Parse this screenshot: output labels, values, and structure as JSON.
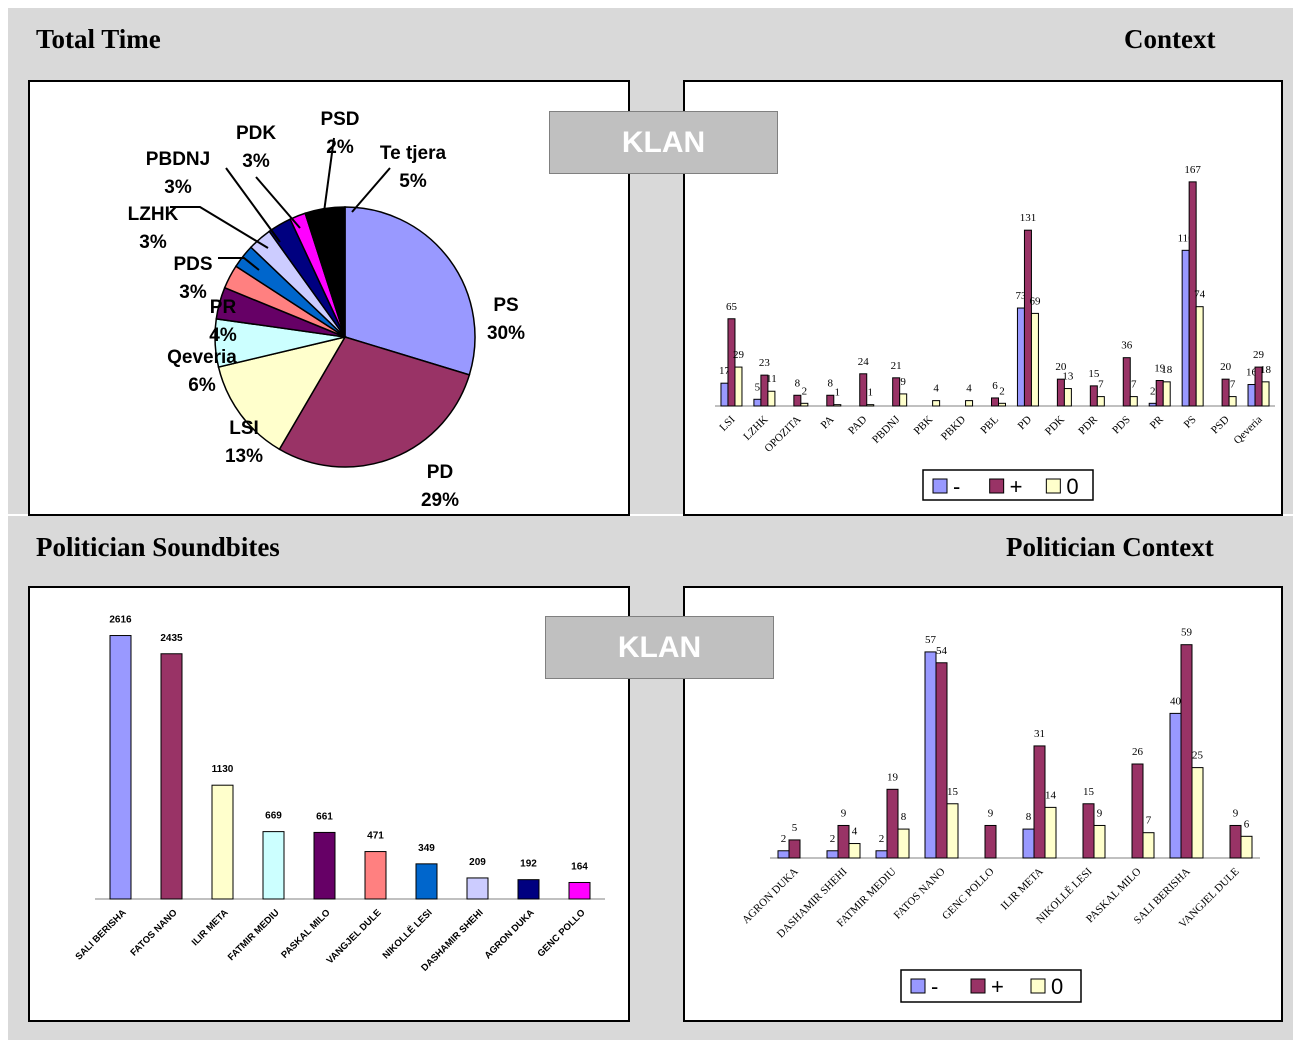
{
  "headings": {
    "total_time": "Total Time",
    "context": "Context",
    "politician_soundbites": "Politician Soundbites",
    "politician_context": "Politician Context"
  },
  "badges": {
    "klan_top": "KLAN",
    "klan_bottom": "KLAN"
  },
  "colors": {
    "panel_bg": "#d9d9d9",
    "minus": "#9999ff",
    "plus": "#993366",
    "zero": "#ffffcc"
  },
  "chart_data": [
    {
      "type": "pie",
      "title": "Total Time",
      "slices": [
        {
          "label": "PS",
          "pct": "30%",
          "value": 30,
          "color": "#9999ff"
        },
        {
          "label": "PD",
          "pct": "29%",
          "value": 29,
          "color": "#993366"
        },
        {
          "label": "LSI",
          "pct": "13%",
          "value": 13,
          "color": "#ffffcc"
        },
        {
          "label": "Qeveria",
          "pct": "6%",
          "value": 6,
          "color": "#ccffff"
        },
        {
          "label": "PR",
          "pct": "4%",
          "value": 4,
          "color": "#660066"
        },
        {
          "label": "PDS",
          "pct": "3%",
          "value": 3,
          "color": "#ff8080"
        },
        {
          "label": "LZHK",
          "pct": "3%",
          "value": 3,
          "color": "#0066cc"
        },
        {
          "label": "PBDNJ",
          "pct": "3%",
          "value": 3,
          "color": "#ccccff"
        },
        {
          "label": "PDK",
          "pct": "3%",
          "value": 3,
          "color": "#000080"
        },
        {
          "label": "PSD",
          "pct": "2%",
          "value": 2,
          "color": "#ff00ff"
        },
        {
          "label": "Te tjera",
          "pct": "5%",
          "value": 5,
          "color": "#000000"
        }
      ]
    },
    {
      "type": "bar",
      "title": "Context",
      "categories": [
        "LSI",
        "LZHK",
        "OPOZITA",
        "PA",
        "PAD",
        "PBDNJ",
        "PBK",
        "PBKD",
        "PBL",
        "PD",
        "PDK",
        "PDR",
        "PDS",
        "PR",
        "PS",
        "PSD",
        "Qeveria"
      ],
      "series": [
        {
          "name": "-",
          "values": [
            17,
            5,
            null,
            null,
            null,
            null,
            null,
            null,
            null,
            73,
            null,
            null,
            null,
            2,
            116,
            null,
            16
          ]
        },
        {
          "name": "+",
          "values": [
            65,
            23,
            8,
            8,
            24,
            21,
            null,
            null,
            6,
            131,
            20,
            15,
            36,
            19,
            167,
            20,
            29
          ]
        },
        {
          "name": "0",
          "values": [
            29,
            11,
            2,
            1,
            1,
            9,
            4,
            4,
            2,
            69,
            13,
            7,
            7,
            18,
            74,
            7,
            18
          ]
        }
      ],
      "ylim": [
        0,
        190
      ],
      "legend": "bottom"
    },
    {
      "type": "bar",
      "title": "Politician Soundbites",
      "categories": [
        "SALI BERISHA",
        "FATOS NANO",
        "ILIR META",
        "FATMIR MEDIU",
        "PASKAL MILO",
        "VANGJEL DULE",
        "NIKOLLË LESI",
        "DASHAMIR SHEHI",
        "AGRON DUKA",
        "GENC POLLO"
      ],
      "values": [
        2616,
        2435,
        1130,
        669,
        661,
        471,
        349,
        209,
        192,
        164
      ],
      "colors": [
        "#9999ff",
        "#993366",
        "#ffffcc",
        "#ccffff",
        "#660066",
        "#ff8080",
        "#0066cc",
        "#ccccff",
        "#000080",
        "#ff00ff"
      ],
      "ylim": [
        0,
        2800
      ]
    },
    {
      "type": "bar",
      "title": "Politician Context",
      "categories": [
        "AGRON DUKA",
        "DASHAMIR SHEHI",
        "FATMIR MEDIU",
        "FATOS NANO",
        "GENC POLLO",
        "ILIR META",
        "NIKOLLË LESI",
        "PASKAL MILO",
        "SALI BERISHA",
        "VANGJEL DULE"
      ],
      "series": [
        {
          "name": "-",
          "values": [
            2,
            2,
            2,
            57,
            null,
            8,
            null,
            null,
            40,
            null
          ]
        },
        {
          "name": "+",
          "values": [
            5,
            9,
            19,
            54,
            9,
            31,
            15,
            26,
            59,
            9
          ]
        },
        {
          "name": "0",
          "values": [
            null,
            4,
            8,
            15,
            null,
            14,
            9,
            7,
            25,
            6
          ]
        }
      ],
      "ylim": [
        0,
        65
      ],
      "legend": "bottom"
    }
  ]
}
